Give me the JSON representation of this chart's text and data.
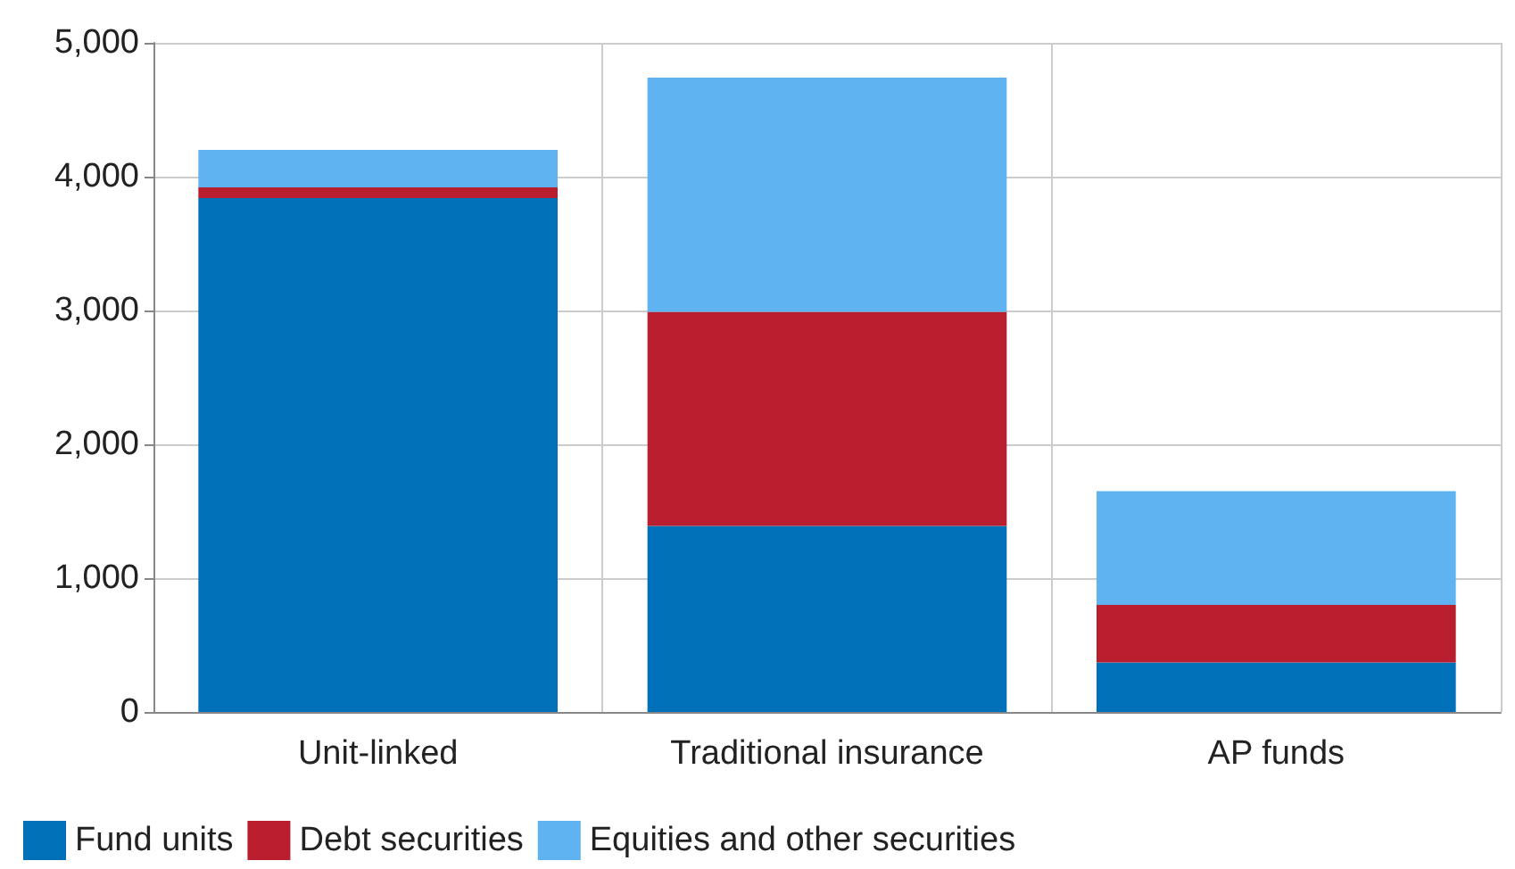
{
  "chart_data": {
    "type": "bar",
    "stacked": true,
    "categories": [
      "Unit-linked",
      "Traditional insurance",
      "AP funds"
    ],
    "series": [
      {
        "name": "Fund units",
        "color": "#0070b8",
        "values": [
          3840,
          1390,
          370
        ]
      },
      {
        "name": "Debt securities",
        "color": "#b81e2d",
        "values": [
          80,
          1600,
          430
        ]
      },
      {
        "name": "Equities and other securities",
        "color": "#5eb3f0",
        "values": [
          280,
          1750,
          850
        ]
      }
    ],
    "ylim": [
      0,
      5000
    ],
    "yticks": [
      0,
      {
        "value": 1000,
        "label": "1,000"
      },
      {
        "value": 2000,
        "label": "2,000"
      },
      {
        "value": 3000,
        "label": "3,000"
      },
      {
        "value": 4000,
        "label": "4,000"
      },
      {
        "value": 5000,
        "label": "5,000"
      }
    ],
    "grid": true,
    "legend": "bottom left"
  }
}
